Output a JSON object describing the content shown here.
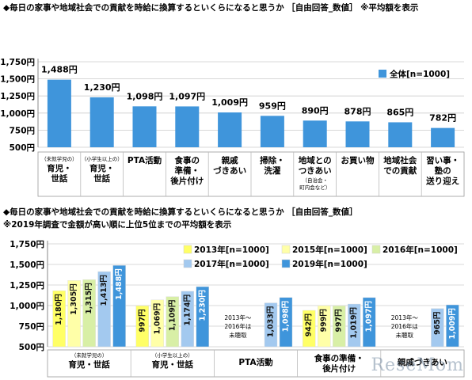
{
  "chart_data": [
    {
      "type": "bar",
      "title": "◆毎日の家事や地域社会での貢献を時給に換算するといくらになると思うか ［自由回答_数値］ ※平均額を表示",
      "ylim": [
        500,
        1750
      ],
      "yticks": [
        500,
        750,
        1000,
        1250,
        1500,
        1750
      ],
      "ytick_labels": [
        "500円",
        "750円",
        "1,000円",
        "1,250円",
        "1,500円",
        "1,750円"
      ],
      "categories": [
        {
          "sub": "（未就学児の）",
          "lines": [
            "育児・",
            "世話"
          ]
        },
        {
          "sub": "（小学生以上の）",
          "lines": [
            "育児・",
            "世話"
          ]
        },
        {
          "sub": "",
          "lines": [
            "PTA活動"
          ]
        },
        {
          "sub": "",
          "lines": [
            "食事の",
            "準備・",
            "後片付け"
          ]
        },
        {
          "sub": "",
          "lines": [
            "親戚",
            "づきあい"
          ]
        },
        {
          "sub": "",
          "lines": [
            "掃除・",
            "洗濯"
          ]
        },
        {
          "sub": "",
          "lines": [
            "地域との",
            "つきあい"
          ],
          "note": [
            "（自治会・",
            "町内会など）"
          ]
        },
        {
          "sub": "",
          "lines": [
            "お買い物"
          ]
        },
        {
          "sub": "",
          "lines": [
            "地域社会",
            "での貢献"
          ]
        },
        {
          "sub": "",
          "lines": [
            "習い事・",
            "塾の",
            "送り迎え"
          ]
        }
      ],
      "series": [
        {
          "name": "全体[n=1000]",
          "color": "#3f95db",
          "values": [
            1488,
            1230,
            1098,
            1097,
            1009,
            959,
            890,
            878,
            865,
            782
          ],
          "labels": [
            "1,488円",
            "1,230円",
            "1,098円",
            "1,097円",
            "1,009円",
            "959円",
            "890円",
            "878円",
            "865円",
            "782円"
          ]
        }
      ],
      "legend": "top-right"
    },
    {
      "type": "bar",
      "title": "◆毎日の家事や地域社会での貢献を時給に換算するといくらになると思うか ［自由回答_数値］",
      "subtitle": "※2019年調査で金額が高い順に上位5位までの平均額を表示",
      "ylim": [
        500,
        1750
      ],
      "yticks": [
        500,
        750,
        1000,
        1250,
        1500,
        1750
      ],
      "ytick_labels": [
        "500円",
        "750円",
        "1,000円",
        "1,250円",
        "1,500円",
        "1,750円"
      ],
      "categories": [
        {
          "sub": "（未就学児の）",
          "lines": [
            "育児・世話"
          ]
        },
        {
          "sub": "（小学生以上の）",
          "lines": [
            "育児・世話"
          ]
        },
        {
          "sub": "",
          "lines": [
            "PTA活動"
          ]
        },
        {
          "sub": "",
          "lines": [
            "食事の準備・",
            "後片付け"
          ]
        },
        {
          "sub": "",
          "lines": [
            "親戚づきあい"
          ]
        }
      ],
      "not_surveyed_note": [
        "2013年～",
        "2016年は",
        "未聴取"
      ],
      "series": [
        {
          "name": "2013年[n=1000]",
          "color": "#ffff66",
          "values": [
            1180,
            997,
            null,
            942,
            null
          ],
          "labels": [
            "1,180円",
            "997円",
            "",
            "942円",
            ""
          ]
        },
        {
          "name": "2015年[n=1000]",
          "color": "#ffffa8",
          "values": [
            1305,
            1069,
            null,
            999,
            null
          ],
          "labels": [
            "1,305円",
            "1,069円",
            "",
            "999円",
            ""
          ]
        },
        {
          "name": "2016年[n=1000]",
          "color": "#d8efa6",
          "values": [
            1315,
            1109,
            null,
            997,
            null
          ],
          "labels": [
            "1,315円",
            "1,109円",
            "",
            "997円",
            ""
          ]
        },
        {
          "name": "2017年[n=1000]",
          "color": "#a3c9ef",
          "values": [
            1413,
            1174,
            1033,
            1019,
            965
          ],
          "labels": [
            "1,413円",
            "1,174円",
            "1,033円",
            "1,019円",
            "965円"
          ]
        },
        {
          "name": "2019年[n=1000]",
          "color": "#3f95db",
          "values": [
            1488,
            1230,
            1098,
            1097,
            1009
          ],
          "labels": [
            "1,488円",
            "1,230円",
            "1,098円",
            "1,097円",
            "1,009円"
          ]
        }
      ],
      "legend": "top-right"
    }
  ],
  "watermark": "ReseMom"
}
